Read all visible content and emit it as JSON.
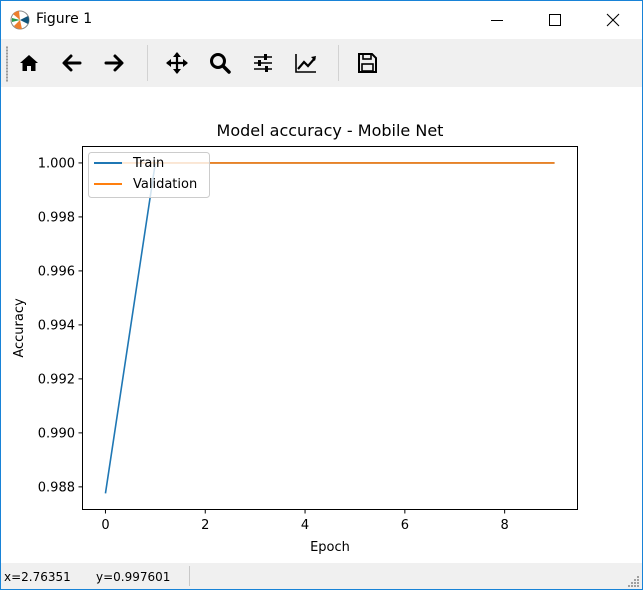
{
  "window": {
    "title": "Figure 1",
    "controls": [
      "minimize-icon",
      "maximize-icon",
      "close-icon"
    ]
  },
  "toolbar": {
    "tools": [
      {
        "name": "home",
        "icon": "home-icon"
      },
      {
        "name": "back",
        "icon": "arrow-left-icon"
      },
      {
        "name": "forward",
        "icon": "arrow-right-icon"
      },
      {
        "name": "pan",
        "icon": "move-icon"
      },
      {
        "name": "zoom",
        "icon": "magnifier-icon"
      },
      {
        "name": "configure-subplots",
        "icon": "sliders-icon"
      },
      {
        "name": "edit-axis",
        "icon": "line-chart-icon"
      },
      {
        "name": "save",
        "icon": "floppy-disk-icon"
      }
    ]
  },
  "status": {
    "x_readout": "x=2.76351",
    "y_readout": "y=0.997601"
  },
  "colors": {
    "train": "#1f77b4",
    "validation": "#ff7f0e"
  },
  "chart_data": {
    "type": "line",
    "title": "Model accuracy - Mobile Net",
    "xlabel": "Epoch",
    "ylabel": "Accuracy",
    "xlim": [
      -0.45,
      9.45
    ],
    "ylim": [
      0.98718,
      1.00059
    ],
    "xticks": [
      0,
      2,
      4,
      6,
      8
    ],
    "xtick_labels": [
      "0",
      "2",
      "4",
      "6",
      "8"
    ],
    "yticks": [
      0.988,
      0.99,
      0.992,
      0.994,
      0.996,
      0.998,
      1.0
    ],
    "ytick_labels": [
      "0.988",
      "0.990",
      "0.992",
      "0.994",
      "0.996",
      "0.998",
      "1.000"
    ],
    "x": [
      0,
      1,
      2,
      3,
      4,
      5,
      6,
      7,
      8,
      9
    ],
    "series": [
      {
        "name": "Train",
        "values": [
          0.98776,
          1.0,
          1.0,
          1.0,
          1.0,
          1.0,
          1.0,
          1.0,
          1.0,
          1.0
        ]
      },
      {
        "name": "Validation",
        "values": [
          1.0,
          1.0,
          1.0,
          1.0,
          1.0,
          1.0,
          1.0,
          1.0,
          1.0,
          1.0
        ]
      }
    ],
    "legend": "upper-left",
    "grid": false
  }
}
